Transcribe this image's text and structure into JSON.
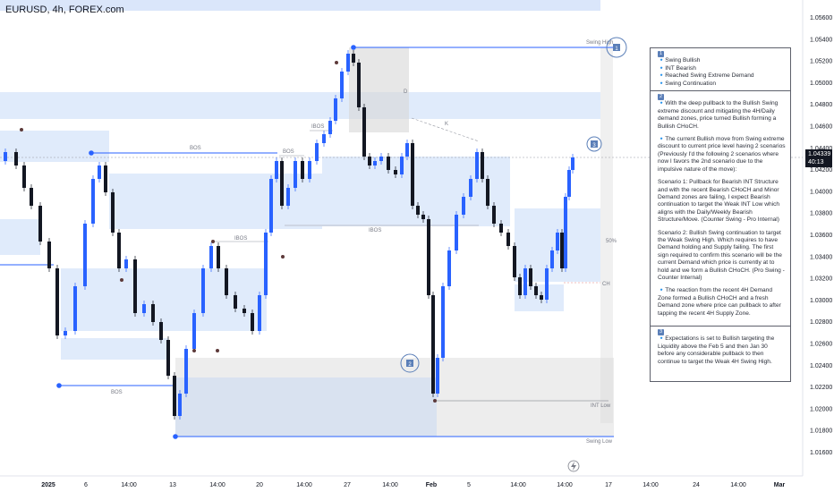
{
  "title": "EURUSD, 4h, FOREX.com",
  "chart_data": {
    "type": "candlestick",
    "symbol": "EURUSD",
    "timeframe": "4h",
    "broker": "FOREX.com",
    "y_ticks": [
      "1.05600",
      "1.05400",
      "1.05200",
      "1.05000",
      "1.04800",
      "1.04600",
      "1.04400",
      "1.04200",
      "1.04000",
      "1.03800",
      "1.03600",
      "1.03400",
      "1.03200",
      "1.03000",
      "1.02800",
      "1.02600",
      "1.02400",
      "1.02200",
      "1.02000",
      "1.01800",
      "1.01600"
    ],
    "x_ticks": [
      "2025",
      "6",
      "14:00",
      "13",
      "14:00",
      "20",
      "14:00",
      "27",
      "14:00",
      "Feb",
      "5",
      "14:00",
      "14:00",
      "17",
      "14:00",
      "24",
      "14:00",
      "Mar"
    ],
    "last_price": "1.04339",
    "countdown": "40:13",
    "ylim": [
      1.0155,
      1.0575
    ],
    "colors": {
      "up": "#2962ff",
      "down": "#131722",
      "zone": "#bbd2f6",
      "grey_zone": "#d7d7d7",
      "line": "#2962ff"
    },
    "labels": {
      "bos1": "BOS",
      "bos2": "BOS",
      "bos3": "BOS",
      "ibos1": "IBOS",
      "ibos2": "IBOS",
      "ibos3": "IBOS",
      "swing_high": "Swing High",
      "swing_low": "Swing Low",
      "int_low": "INT Low",
      "choch": "CH",
      "fifty": "50%",
      "d": "D",
      "k": "K",
      "circle1": "1",
      "circle2": "2",
      "circle3": "3"
    }
  },
  "note": {
    "s1_badge": "1",
    "s1_items": [
      "🔹Swing Bullish",
      "🔹INT Bearish",
      "🔹Reached Swing Extreme Demand",
      "🔹Swing Continuation"
    ],
    "s2_badge": "2",
    "s2_p1": "🔹With the deep pullback to the Bullish Swing extreme discount and mitigating the 4H/Daily demand zones, price turned Bullish forming a Bullish CHoCH.",
    "s2_p2": "🔹The current Bullish move from Swing extreme discount to current price level having 2 scenarios (Previously I'd the following 2 scenarios where now I favors the 2nd scenario due to the impulsive nature of the move):",
    "s2_p3": "Scenario 1: Pullback for Bearish INT Structure and with the recent Bearish CHoCH and Minor Demand zones are failing, I expect Bearish continuation to target the Weak INT Low which aligns with the Daily/Weekly Bearish Structure/Move. (Counter Swing - Pro Internal)",
    "s2_p4": "Scenario 2: Bullish Swing continuation to target the Weak Swing High. Which requires to have Demand holding and Supply failing. The first sign required to confirm this scenario will be the current Demand which price is currently at to hold and we form a Bullish CHoCH. (Pro Swing - Counter Internal)",
    "s2_p5": "🔹The reaction from the recent 4H Demand Zone formed a Bullish CHoCH and a fresh Demand zone where price can pullback to after tapping the recent 4H Supply Zone.",
    "s3_badge": "3",
    "s3_p1": "🔹Expectations is set to Bullish targeting the Liquidity above the Feb 5 and then Jan 30 before any considerable pullback to then continue to target the Weak 4H Swing High."
  }
}
